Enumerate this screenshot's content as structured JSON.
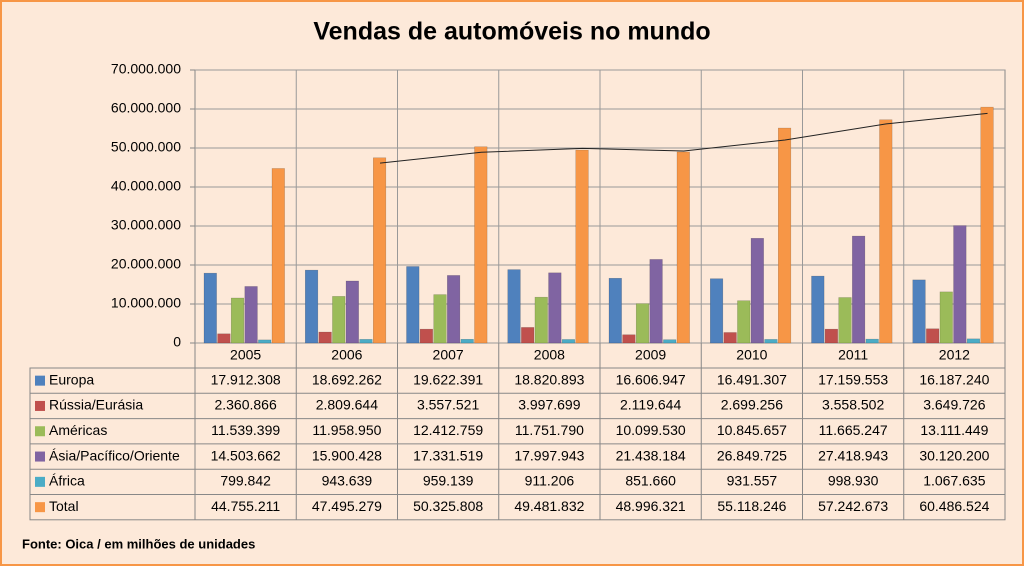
{
  "chart_data": {
    "type": "bar",
    "title": "Vendas de automóveis no mundo",
    "categories": [
      "2005",
      "2006",
      "2007",
      "2008",
      "2009",
      "2010",
      "2011",
      "2012"
    ],
    "series": [
      {
        "name": "Europa",
        "color": "#4f81bd",
        "values": [
          17912308,
          18692262,
          19622391,
          18820893,
          16606947,
          16491307,
          17159553,
          16187240
        ],
        "value_labels": [
          "17.912.308",
          "18.692.262",
          "19.622.391",
          "18.820.893",
          "16.606.947",
          "16.491.307",
          "17.159.553",
          "16.187.240"
        ]
      },
      {
        "name": "Rússia/Eurásia",
        "color": "#c0504d",
        "values": [
          2360866,
          2809644,
          3557521,
          3997699,
          2119644,
          2699256,
          3558502,
          3649726
        ],
        "value_labels": [
          "2.360.866",
          "2.809.644",
          "3.557.521",
          "3.997.699",
          "2.119.644",
          "2.699.256",
          "3.558.502",
          "3.649.726"
        ]
      },
      {
        "name": "Américas",
        "color": "#9bbb59",
        "values": [
          11539399,
          11958950,
          12412759,
          11751790,
          10099530,
          10845657,
          11665247,
          13111449
        ],
        "value_labels": [
          "11.539.399",
          "11.958.950",
          "12.412.759",
          "11.751.790",
          "10.099.530",
          "10.845.657",
          "11.665.247",
          "13.111.449"
        ]
      },
      {
        "name": "Ásia/Pacífico/Oriente",
        "color": "#8064a2",
        "values": [
          14503662,
          15900428,
          17331519,
          17997943,
          21438184,
          26849725,
          27418943,
          30120200
        ],
        "value_labels": [
          "14.503.662",
          "15.900.428",
          "17.331.519",
          "17.997.943",
          "21.438.184",
          "26.849.725",
          "27.418.943",
          "30.120.200"
        ]
      },
      {
        "name": "África",
        "color": "#4bacc6",
        "values": [
          799842,
          943639,
          959139,
          911206,
          851660,
          931557,
          998930,
          1067635
        ],
        "value_labels": [
          "799.842",
          "943.639",
          "959.139",
          "911.206",
          "851.660",
          "931.557",
          "998.930",
          "1.067.635"
        ]
      },
      {
        "name": "Total",
        "color": "#f79646",
        "values": [
          44755211,
          47495279,
          50325808,
          49481832,
          48996321,
          55118246,
          57242673,
          60486524
        ],
        "value_labels": [
          "44.755.211",
          "47.495.279",
          "50.325.808",
          "49.481.832",
          "48.996.321",
          "55.118.246",
          "57.242.673",
          "60.486.524"
        ]
      }
    ],
    "ylim": [
      0,
      70000000
    ],
    "yticks": [
      0,
      {
        "value": 10000000,
        "label": "10.000.000"
      },
      {
        "value": 20000000,
        "label": "20.000.000"
      },
      {
        "value": 30000000,
        "label": "30.000.000"
      },
      {
        "value": 40000000,
        "label": "40.000.000"
      },
      {
        "value": 50000000,
        "label": "50.000.000"
      },
      {
        "value": 60000000,
        "label": "60.000.000"
      },
      {
        "value": 70000000,
        "label": "70.000.000"
      }
    ],
    "grid": true,
    "trendline_period": 2,
    "source": "Fonte: Oica / em milhões de unidades"
  }
}
